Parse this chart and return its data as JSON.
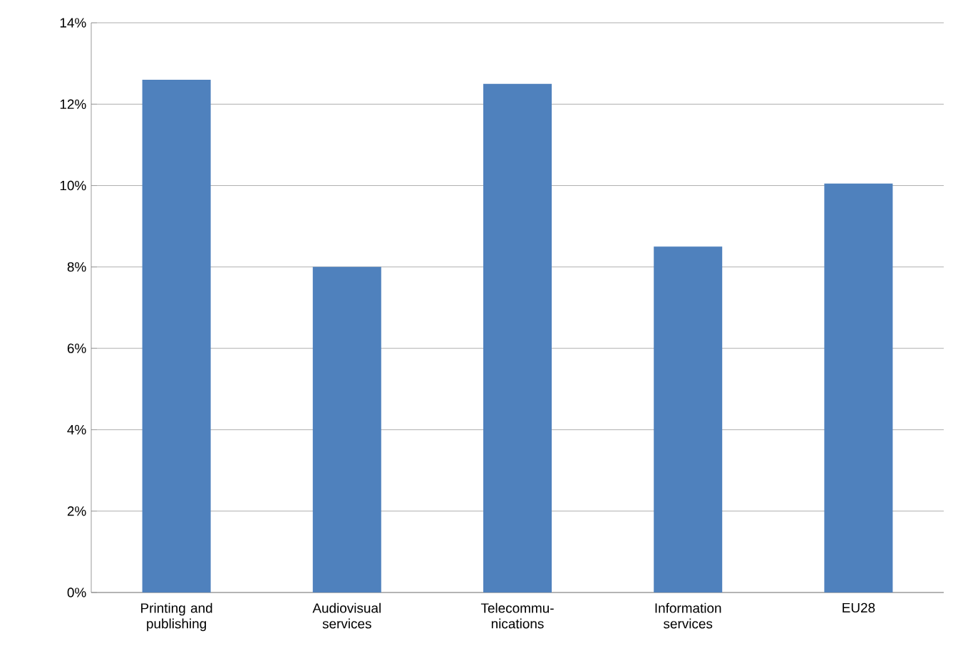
{
  "chart_data": {
    "type": "bar",
    "categories": [
      "Printing and publishing",
      "Audiovisual services",
      "Telecommu-nications",
      "Information services",
      "EU28"
    ],
    "values": [
      12.6,
      8.0,
      12.5,
      8.5,
      10.05
    ],
    "color": "#4f81bd",
    "ylim": [
      0,
      14
    ],
    "yticks": [
      {
        "value": 0,
        "label": "0%"
      },
      {
        "value": 2,
        "label": "2%"
      },
      {
        "value": 4,
        "label": "4%"
      },
      {
        "value": 6,
        "label": "6%"
      },
      {
        "value": 8,
        "label": "8%"
      },
      {
        "value": 10,
        "label": "10%"
      },
      {
        "value": 12,
        "label": "12%"
      },
      {
        "value": 14,
        "label": "14%"
      }
    ],
    "grid": "y"
  }
}
